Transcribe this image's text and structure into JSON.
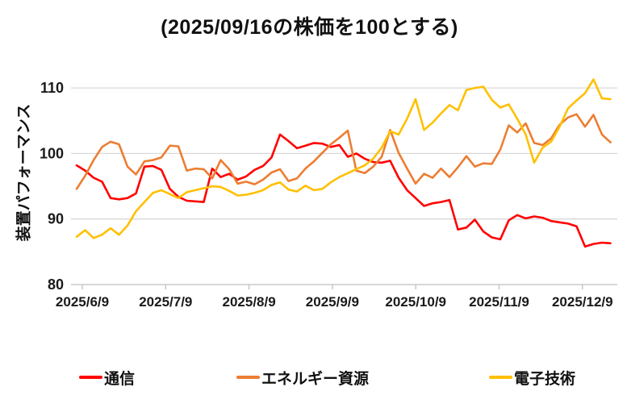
{
  "chart_data": {
    "type": "line",
    "title": "(2025/09/16の株価を100とする)",
    "ylabel": "装置パフォーマンス",
    "x_tick_labels": [
      "2025/6/9",
      "2025/7/9",
      "2025/8/9",
      "2025/9/9",
      "2025/10/9",
      "2025/11/9",
      "2025/12/9"
    ],
    "yticks": [
      80,
      90,
      100,
      110
    ],
    "ylim": [
      80,
      114.2
    ],
    "grid": true,
    "legend_position": "bottom",
    "colors": {
      "grid": "#d9d9d9",
      "axis": "#bfbfbf",
      "tick_text": "#1a1a1a",
      "background": "#ffffff"
    },
    "series": [
      {
        "name": "通信",
        "color": "#ff0000",
        "values": [
          98.2,
          97.4,
          96.3,
          95.7,
          93.2,
          93.0,
          93.2,
          93.9,
          98.0,
          98.1,
          97.5,
          94.6,
          93.4,
          92.8,
          92.7,
          92.6,
          97.7,
          96.4,
          96.9,
          96.0,
          96.5,
          97.5,
          98.1,
          99.4,
          102.9,
          101.9,
          100.8,
          101.2,
          101.6,
          101.5,
          101.0,
          101.3,
          99.5,
          100.0,
          99.2,
          98.7,
          98.6,
          98.9,
          96.3,
          94.4,
          93.2,
          92.0,
          92.4,
          92.6,
          92.9,
          88.4,
          88.7,
          89.9,
          88.1,
          87.2,
          86.9,
          89.8,
          90.6,
          90.1,
          90.4,
          90.2,
          89.7,
          89.5,
          89.3,
          88.9,
          85.8,
          86.2,
          86.4,
          86.3
        ]
      },
      {
        "name": "エネルギー資源",
        "color": "#ed7d31",
        "values": [
          94.6,
          96.6,
          99.0,
          101.0,
          101.8,
          101.4,
          98.0,
          96.8,
          98.8,
          99.0,
          99.4,
          101.2,
          101.1,
          97.4,
          97.7,
          97.6,
          96.2,
          99.0,
          97.6,
          95.4,
          95.7,
          95.3,
          96.0,
          97.1,
          97.6,
          95.8,
          96.2,
          97.7,
          98.8,
          100.1,
          101.4,
          102.4,
          103.5,
          97.4,
          97.0,
          98.0,
          99.5,
          103.6,
          100.1,
          97.7,
          95.4,
          96.9,
          96.3,
          97.7,
          96.4,
          97.9,
          99.6,
          98.0,
          98.5,
          98.4,
          100.6,
          104.3,
          103.2,
          104.6,
          101.6,
          101.3,
          102.3,
          104.4,
          105.5,
          106.0,
          104.1,
          105.9,
          102.9,
          101.7
        ]
      },
      {
        "name": "電子技術",
        "color": "#ffc000",
        "values": [
          87.3,
          88.3,
          87.1,
          87.6,
          88.6,
          87.6,
          89.0,
          91.2,
          92.6,
          94.0,
          94.4,
          93.8,
          93.2,
          94.1,
          94.4,
          94.7,
          95.0,
          94.9,
          94.3,
          93.6,
          93.7,
          94.0,
          94.4,
          95.2,
          95.6,
          94.5,
          94.2,
          95.1,
          94.4,
          94.6,
          95.6,
          96.4,
          97.0,
          97.6,
          98.2,
          99.2,
          100.9,
          103.4,
          102.9,
          105.3,
          108.3,
          103.6,
          104.7,
          106.1,
          107.4,
          106.6,
          109.7,
          110.0,
          110.2,
          108.2,
          107.0,
          107.5,
          105.3,
          102.9,
          98.6,
          100.9,
          101.8,
          104.1,
          106.9,
          108.1,
          109.2,
          111.3,
          108.4,
          108.3
        ]
      }
    ]
  }
}
